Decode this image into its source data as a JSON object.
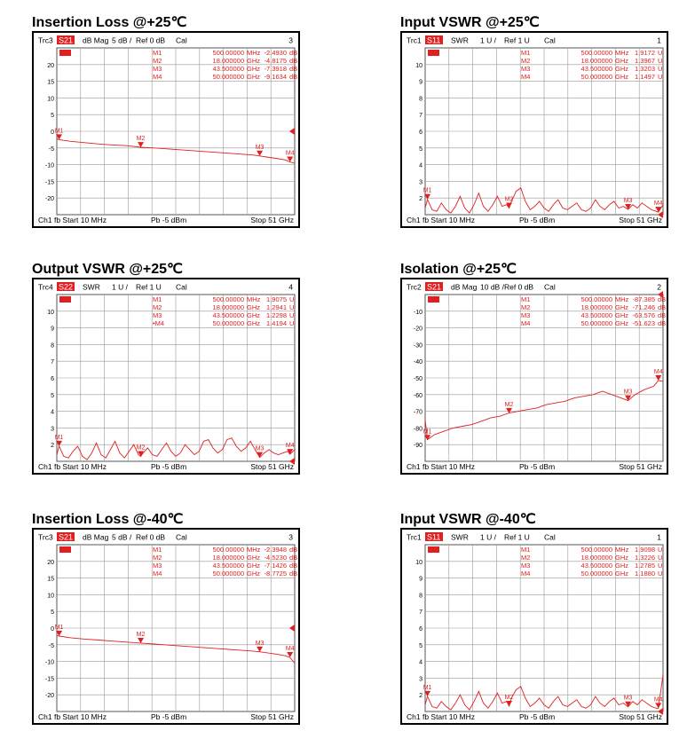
{
  "panels": [
    {
      "title": "Insertion Loss @+25℃",
      "header": {
        "trace": "Trc3",
        "param": "S21",
        "format": "dB Mag",
        "scale": "5 dB /",
        "ref": "Ref 0 dB",
        "cal": "Cal",
        "number": "3"
      },
      "footer": {
        "left": "Ch1  fb  Start  10 MHz",
        "mid": "Pb   -5 dBm",
        "right": "Stop  51 GHz"
      },
      "markers": [
        {
          "name": "M1",
          "freq": "500.00000",
          "unit": "MHz",
          "value": "-2.4930",
          "vunit": "dB"
        },
        {
          "name": "M2",
          "freq": "18.000000",
          "unit": "GHz",
          "value": "-4.8175",
          "vunit": "dB"
        },
        {
          "name": "M3",
          "freq": "43.500000",
          "unit": "GHz",
          "value": "-7.3918",
          "vunit": "dB"
        },
        {
          "name": "M4",
          "freq": "50.000000",
          "unit": "GHz",
          "value": "-9.1634",
          "vunit": "dB"
        }
      ]
    },
    {
      "title": "Input VSWR @+25℃",
      "header": {
        "trace": "Trc1",
        "param": "S11",
        "format": "SWR",
        "scale": "1 U /",
        "ref": "Ref 1 U",
        "cal": "Cal",
        "number": "1"
      },
      "footer": {
        "left": "Ch1  fb  Start  10 MHz",
        "mid": "Pb   -5 dBm",
        "right": "Stop  51 GHz"
      },
      "markers": [
        {
          "name": "M1",
          "freq": "500.00000",
          "unit": "MHz",
          "value": "1.9172",
          "vunit": "U"
        },
        {
          "name": "M2",
          "freq": "18.000000",
          "unit": "GHz",
          "value": "1.3967",
          "vunit": "U"
        },
        {
          "name": "M3",
          "freq": "43.500000",
          "unit": "GHz",
          "value": "1.3203",
          "vunit": "U"
        },
        {
          "name": "M4",
          "freq": "50.000000",
          "unit": "GHz",
          "value": "1.1497",
          "vunit": "U"
        }
      ]
    },
    {
      "title": "Output VSWR @+25℃",
      "header": {
        "trace": "Trc4",
        "param": "S22",
        "format": "SWR",
        "scale": "1 U /",
        "ref": "Ref 1 U",
        "cal": "Cal",
        "number": "4"
      },
      "footer": {
        "left": "Ch1  fb  Start  10 MHz",
        "mid": "Pb   -5 dBm",
        "right": "Stop  51 GHz"
      },
      "markers": [
        {
          "name": "M1",
          "freq": "500.00000",
          "unit": "MHz",
          "value": "1.9075",
          "vunit": "U"
        },
        {
          "name": "M2",
          "freq": "18.000000",
          "unit": "GHz",
          "value": "1.2941",
          "vunit": "U"
        },
        {
          "name": "M3",
          "freq": "43.500000",
          "unit": "GHz",
          "value": "1.2298",
          "vunit": "U"
        },
        {
          "name": "•M4",
          "freq": "50.000000",
          "unit": "GHz",
          "value": "1.4194",
          "vunit": "U"
        }
      ]
    },
    {
      "title": "Isolation @+25℃",
      "header": {
        "trace": "Trc2",
        "param": "S21",
        "format": "dB Mag",
        "scale": "10 dB /",
        "ref": "Ref 0 dB",
        "cal": "Cal",
        "number": "2"
      },
      "footer": {
        "left": "Ch1  fb  Start  10 MHz",
        "mid": "Pb   -5 dBm",
        "right": "Stop  51 GHz"
      },
      "markers": [
        {
          "name": "M1",
          "freq": "500.00000",
          "unit": "MHz",
          "value": "-87.385",
          "vunit": "dB"
        },
        {
          "name": "M2",
          "freq": "18.000000",
          "unit": "GHz",
          "value": "-71.246",
          "vunit": "dB"
        },
        {
          "name": "M3",
          "freq": "43.500000",
          "unit": "GHz",
          "value": "-63.576",
          "vunit": "dB"
        },
        {
          "name": "M4",
          "freq": "50.000000",
          "unit": "GHz",
          "value": "-51.623",
          "vunit": "dB"
        }
      ]
    },
    {
      "title": "Insertion Loss @-40℃",
      "header": {
        "trace": "Trc3",
        "param": "S21",
        "format": "dB Mag",
        "scale": "5 dB /",
        "ref": "Ref 0 dB",
        "cal": "Cal",
        "number": "3"
      },
      "footer": {
        "left": "Ch1  fb  Start  10 MHz",
        "mid": "Pb   -5 dBm",
        "right": "Stop  51 GHz"
      },
      "markers": [
        {
          "name": "M1",
          "freq": "500.00000",
          "unit": "MHz",
          "value": "-2.3948",
          "vunit": "dB"
        },
        {
          "name": "M2",
          "freq": "18.000000",
          "unit": "GHz",
          "value": "-4.5230",
          "vunit": "dB"
        },
        {
          "name": "M3",
          "freq": "43.500000",
          "unit": "GHz",
          "value": "-7.1426",
          "vunit": "dB"
        },
        {
          "name": "M4",
          "freq": "50.000000",
          "unit": "GHz",
          "value": "-8.7725",
          "vunit": "dB"
        }
      ]
    },
    {
      "title": "Input VSWR @-40℃",
      "header": {
        "trace": "Trc1",
        "param": "S11",
        "format": "SWR",
        "scale": "1 U /",
        "ref": "Ref 1 U",
        "cal": "Cal",
        "number": "1"
      },
      "footer": {
        "left": "Ch1  fb  Start  10 MHz",
        "mid": "Pb   -5 dBm",
        "right": "Stop  51 GHz"
      },
      "markers": [
        {
          "name": "M1",
          "freq": "500.00000",
          "unit": "MHz",
          "value": "1.9098",
          "vunit": "U"
        },
        {
          "name": "M2",
          "freq": "18.000000",
          "unit": "GHz",
          "value": "1.3226",
          "vunit": "U"
        },
        {
          "name": "M3",
          "freq": "43.500000",
          "unit": "GHz",
          "value": "1.2785",
          "vunit": "U"
        },
        {
          "name": "M4",
          "freq": "50.000000",
          "unit": "GHz",
          "value": "1.1880",
          "vunit": "U"
        }
      ]
    }
  ],
  "chart_data": [
    {
      "type": "line",
      "xlim": [
        0.01,
        51
      ],
      "ylim": [
        -25,
        25
      ],
      "yticks": [
        "20",
        "15",
        "10",
        "5",
        "0",
        "-5",
        "-10",
        "-15",
        "-20"
      ],
      "series": [
        {
          "x": [
            0.01,
            0.5,
            3,
            6,
            9,
            12,
            15,
            18,
            21,
            24,
            27,
            30,
            33,
            36,
            39,
            42,
            43.5,
            45,
            47,
            49,
            50,
            51
          ],
          "y": [
            -2.3,
            -2.5,
            -3.0,
            -3.4,
            -3.8,
            -4.1,
            -4.3,
            -4.8,
            -5.0,
            -5.3,
            -5.6,
            -5.9,
            -6.2,
            -6.5,
            -6.8,
            -7.1,
            -7.4,
            -7.7,
            -8.1,
            -8.6,
            -9.2,
            -9.6
          ]
        }
      ],
      "markers": [
        {
          "label": "M1",
          "x": 0.5,
          "y": -2.49
        },
        {
          "label": "M2",
          "x": 18,
          "y": -4.82
        },
        {
          "label": "M3",
          "x": 43.5,
          "y": -7.39
        },
        {
          "label": "M4",
          "x": 50,
          "y": -9.16
        }
      ],
      "ref_value": 0
    },
    {
      "type": "line",
      "xlim": [
        0.01,
        51
      ],
      "ylim": [
        1,
        11
      ],
      "yticks": [
        "10",
        "9",
        "8",
        "7",
        "6",
        "5",
        "4",
        "3",
        "2"
      ],
      "series": [
        {
          "x": [
            0.01,
            0.5,
            1.5,
            2.5,
            3.5,
            4.5,
            5.5,
            6.5,
            7.5,
            8.5,
            9.5,
            10.5,
            11.5,
            12.5,
            13.5,
            14.5,
            15.5,
            16.5,
            17.5,
            18,
            18.5,
            19.5,
            20.5,
            21.5,
            22.5,
            23.5,
            24.5,
            25.5,
            26.5,
            27.5,
            28.5,
            29.5,
            30.5,
            31.5,
            32.5,
            33.5,
            34.5,
            35.5,
            36.5,
            37.5,
            38.5,
            39.5,
            40.5,
            41.5,
            42.5,
            43.5,
            44.5,
            45.5,
            46.5,
            47.5,
            48.5,
            49.5,
            50,
            51
          ],
          "y": [
            1.4,
            1.92,
            1.3,
            1.2,
            1.7,
            1.3,
            1.1,
            1.5,
            2.1,
            1.4,
            1.1,
            1.6,
            2.3,
            1.5,
            1.2,
            1.6,
            2.1,
            1.5,
            1.6,
            1.4,
            1.8,
            2.4,
            2.6,
            1.8,
            1.3,
            1.5,
            1.8,
            1.4,
            1.2,
            1.6,
            1.9,
            1.4,
            1.3,
            1.5,
            1.7,
            1.3,
            1.2,
            1.4,
            1.9,
            1.5,
            1.3,
            1.6,
            1.8,
            1.4,
            1.5,
            1.32,
            1.6,
            1.4,
            1.7,
            1.5,
            1.3,
            1.2,
            1.15,
            1.6
          ]
        }
      ],
      "markers": [
        {
          "label": "M1",
          "x": 0.5,
          "y": 1.92
        },
        {
          "label": "M2",
          "x": 18,
          "y": 1.4
        },
        {
          "label": "M3",
          "x": 43.5,
          "y": 1.32
        },
        {
          "label": "M4",
          "x": 50,
          "y": 1.15
        }
      ],
      "ref_value": 1
    },
    {
      "type": "line",
      "xlim": [
        0.01,
        51
      ],
      "ylim": [
        1,
        11
      ],
      "yticks": [
        "10",
        "9",
        "8",
        "7",
        "6",
        "5",
        "4",
        "3",
        "2"
      ],
      "series": [
        {
          "x": [
            0.01,
            0.5,
            1.5,
            2.5,
            3.5,
            4.5,
            5.5,
            6.5,
            7.5,
            8.5,
            9.5,
            10.5,
            11.5,
            12.5,
            13.5,
            14.5,
            15.5,
            16.5,
            17.5,
            18,
            18.5,
            19.5,
            20.5,
            21.5,
            22.5,
            23.5,
            24.5,
            25.5,
            26.5,
            27.5,
            28.5,
            29.5,
            30.5,
            31.5,
            32.5,
            33.5,
            34.5,
            35.5,
            36.5,
            37.5,
            38.5,
            39.5,
            40.5,
            41.5,
            42.5,
            43.5,
            44.5,
            45.5,
            46.5,
            47.5,
            48.5,
            49.5,
            50,
            51
          ],
          "y": [
            1.4,
            1.91,
            1.3,
            1.2,
            1.6,
            1.9,
            1.3,
            1.1,
            1.5,
            2.1,
            1.4,
            1.2,
            1.7,
            2.2,
            1.5,
            1.2,
            1.6,
            2.0,
            1.4,
            1.29,
            1.5,
            1.8,
            1.4,
            1.3,
            1.7,
            2.1,
            1.6,
            1.3,
            1.5,
            2.0,
            1.7,
            1.4,
            1.6,
            2.2,
            2.3,
            1.8,
            1.5,
            1.7,
            2.3,
            2.4,
            1.9,
            1.6,
            1.8,
            2.2,
            1.7,
            1.23,
            1.5,
            1.7,
            1.5,
            1.4,
            1.5,
            1.6,
            1.42,
            1.7
          ]
        }
      ],
      "markers": [
        {
          "label": "M1",
          "x": 0.5,
          "y": 1.91
        },
        {
          "label": "M2",
          "x": 18,
          "y": 1.29
        },
        {
          "label": "M3",
          "x": 43.5,
          "y": 1.23
        },
        {
          "label": "M4",
          "x": 50,
          "y": 1.42
        }
      ],
      "ref_value": 1
    },
    {
      "type": "line",
      "xlim": [
        0.01,
        51
      ],
      "ylim": [
        -100,
        0
      ],
      "yticks": [
        "-10",
        "-20",
        "-30",
        "-40",
        "-50",
        "-60",
        "-70",
        "-80",
        "-90"
      ],
      "series": [
        {
          "x": [
            0.01,
            0.5,
            2,
            4,
            6,
            8,
            10,
            12,
            14,
            16,
            18,
            20,
            22,
            24,
            26,
            28,
            30,
            32,
            34,
            36,
            38,
            40,
            42,
            43.5,
            45,
            47,
            49,
            50,
            51
          ],
          "y": [
            -75,
            -87,
            -84,
            -82,
            -80,
            -79,
            -78,
            -76,
            -74,
            -73,
            -71,
            -70,
            -69,
            -68,
            -66,
            -65,
            -64,
            -62,
            -61,
            -60,
            -58,
            -60,
            -62,
            -63.6,
            -60,
            -57,
            -55,
            -51.6,
            -52
          ]
        }
      ],
      "markers": [
        {
          "label": "M1",
          "x": 0.5,
          "y": -87.4
        },
        {
          "label": "M2",
          "x": 18,
          "y": -71.2
        },
        {
          "label": "M3",
          "x": 43.5,
          "y": -63.6
        },
        {
          "label": "M4",
          "x": 50,
          "y": -51.6
        }
      ],
      "ref_value": 0
    },
    {
      "type": "line",
      "xlim": [
        0.01,
        51
      ],
      "ylim": [
        -25,
        25
      ],
      "yticks": [
        "20",
        "15",
        "10",
        "5",
        "0",
        "-5",
        "-10",
        "-15",
        "-20"
      ],
      "series": [
        {
          "x": [
            0.01,
            0.5,
            3,
            6,
            9,
            12,
            15,
            18,
            21,
            24,
            27,
            30,
            33,
            36,
            39,
            42,
            43.5,
            45,
            47,
            49,
            50,
            51
          ],
          "y": [
            -2.2,
            -2.4,
            -2.9,
            -3.3,
            -3.6,
            -3.9,
            -4.2,
            -4.5,
            -4.8,
            -5.1,
            -5.4,
            -5.7,
            -6.0,
            -6.3,
            -6.6,
            -6.9,
            -7.1,
            -7.4,
            -7.8,
            -8.3,
            -8.8,
            -10.5
          ]
        }
      ],
      "markers": [
        {
          "label": "M1",
          "x": 0.5,
          "y": -2.39
        },
        {
          "label": "M2",
          "x": 18,
          "y": -4.52
        },
        {
          "label": "M3",
          "x": 43.5,
          "y": -7.14
        },
        {
          "label": "M4",
          "x": 50,
          "y": -8.77
        }
      ],
      "ref_value": 0
    },
    {
      "type": "line",
      "xlim": [
        0.01,
        51
      ],
      "ylim": [
        1,
        11
      ],
      "yticks": [
        "10",
        "9",
        "8",
        "7",
        "6",
        "5",
        "4",
        "3",
        "2"
      ],
      "series": [
        {
          "x": [
            0.01,
            0.5,
            1.5,
            2.5,
            3.5,
            4.5,
            5.5,
            6.5,
            7.5,
            8.5,
            9.5,
            10.5,
            11.5,
            12.5,
            13.5,
            14.5,
            15.5,
            16.5,
            17.5,
            18,
            18.5,
            19.5,
            20.5,
            21.5,
            22.5,
            23.5,
            24.5,
            25.5,
            26.5,
            27.5,
            28.5,
            29.5,
            30.5,
            31.5,
            32.5,
            33.5,
            34.5,
            35.5,
            36.5,
            37.5,
            38.5,
            39.5,
            40.5,
            41.5,
            42.5,
            43.5,
            44.5,
            45.5,
            46.5,
            47.5,
            48.5,
            49.5,
            50,
            51
          ],
          "y": [
            1.4,
            1.91,
            1.3,
            1.2,
            1.6,
            1.3,
            1.1,
            1.5,
            2.0,
            1.4,
            1.1,
            1.6,
            2.2,
            1.5,
            1.2,
            1.6,
            2.1,
            1.5,
            1.6,
            1.32,
            1.8,
            2.3,
            2.5,
            1.8,
            1.3,
            1.5,
            1.8,
            1.4,
            1.2,
            1.6,
            1.9,
            1.4,
            1.3,
            1.5,
            1.7,
            1.3,
            1.2,
            1.4,
            1.9,
            1.5,
            1.3,
            1.6,
            1.8,
            1.4,
            1.5,
            1.28,
            1.6,
            1.4,
            1.7,
            1.5,
            1.3,
            1.2,
            1.19,
            3.2
          ]
        }
      ],
      "markers": [
        {
          "label": "M1",
          "x": 0.5,
          "y": 1.91
        },
        {
          "label": "M2",
          "x": 18,
          "y": 1.32
        },
        {
          "label": "M3",
          "x": 43.5,
          "y": 1.28
        },
        {
          "label": "M4",
          "x": 50,
          "y": 1.19
        }
      ],
      "ref_value": 1
    }
  ]
}
